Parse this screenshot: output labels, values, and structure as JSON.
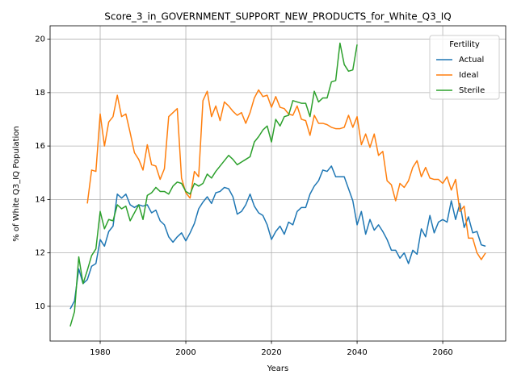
{
  "chart_data": {
    "type": "line",
    "title": "Score_3_in_GOVERNMENT_SUPPORT_NEW_PRODUCTS_for_White_Q3_IQ",
    "xlabel": "Years",
    "ylabel": "% of White Q3_IQ Population",
    "legend_title": "Fertility",
    "legend": "upper right",
    "grid": true,
    "xlim": [
      1968.3,
      2074.7
    ],
    "ylim": [
      8.7,
      20.5
    ],
    "xticks": [
      1980,
      2000,
      2020,
      2040,
      2060
    ],
    "yticks": [
      10,
      12,
      14,
      16,
      18,
      20
    ],
    "x": [
      1973,
      1974,
      1975,
      1976,
      1977,
      1978,
      1979,
      1980,
      1981,
      1982,
      1983,
      1984,
      1985,
      1986,
      1987,
      1988,
      1989,
      1990,
      1991,
      1992,
      1993,
      1994,
      1995,
      1996,
      1997,
      1998,
      1999,
      2000,
      2001,
      2002,
      2003,
      2004,
      2005,
      2006,
      2007,
      2008,
      2009,
      2010,
      2011,
      2012,
      2013,
      2014,
      2015,
      2016,
      2017,
      2018,
      2019,
      2020,
      2021,
      2022,
      2023,
      2024,
      2025,
      2026,
      2027,
      2028,
      2029,
      2030,
      2031,
      2032,
      2033,
      2034,
      2035,
      2036,
      2037,
      2038,
      2039,
      2040,
      2041,
      2042,
      2043,
      2044,
      2045,
      2046,
      2047,
      2048,
      2049,
      2050,
      2051,
      2052,
      2053,
      2054,
      2055,
      2056,
      2057,
      2058,
      2059,
      2060,
      2061,
      2062,
      2063,
      2064,
      2065,
      2066,
      2067,
      2068,
      2069,
      2070
    ],
    "series": [
      {
        "name": "Actual",
        "color": "#1f77b4",
        "values": [
          9.9,
          10.2,
          11.4,
          10.85,
          11.0,
          11.5,
          11.6,
          12.5,
          12.25,
          12.8,
          13.0,
          14.2,
          14.05,
          14.2,
          13.8,
          13.7,
          13.8,
          13.75,
          13.8,
          13.5,
          13.6,
          13.2,
          13.05,
          12.6,
          12.4,
          12.6,
          12.75,
          12.45,
          12.75,
          13.1,
          13.65,
          13.9,
          14.1,
          13.85,
          14.25,
          14.3,
          14.45,
          14.4,
          14.1,
          13.45,
          13.55,
          13.8,
          14.2,
          13.75,
          13.5,
          13.4,
          13.05,
          12.5,
          12.8,
          13.0,
          12.7,
          13.15,
          13.05,
          13.55,
          13.7,
          13.7,
          14.2,
          14.5,
          14.7,
          15.1,
          15.05,
          15.25,
          14.85,
          14.85,
          14.85,
          14.4,
          13.95,
          13.05,
          13.55,
          12.7,
          13.25,
          12.85,
          13.05,
          12.8,
          12.5,
          12.1,
          12.1,
          11.8,
          12.0,
          11.6,
          12.1,
          11.95,
          12.9,
          12.6,
          13.4,
          12.75,
          13.15,
          13.25,
          13.15,
          13.95,
          13.25,
          13.85,
          12.95,
          13.35,
          12.75,
          12.8,
          12.3,
          12.25
        ]
      },
      {
        "name": "Ideal",
        "color": "#ff7f0e",
        "values": [
          null,
          null,
          null,
          null,
          13.85,
          15.1,
          15.05,
          17.2,
          16.0,
          16.9,
          17.1,
          17.9,
          17.1,
          17.2,
          16.5,
          15.75,
          15.5,
          15.1,
          16.05,
          15.3,
          15.25,
          14.75,
          15.15,
          17.1,
          17.25,
          17.4,
          14.8,
          14.25,
          14.05,
          15.05,
          14.85,
          17.7,
          18.05,
          17.1,
          17.5,
          16.95,
          17.65,
          17.5,
          17.3,
          17.15,
          17.25,
          16.85,
          17.25,
          17.8,
          18.1,
          17.85,
          17.9,
          17.45,
          17.85,
          17.45,
          17.4,
          17.2,
          17.15,
          17.5,
          17.0,
          16.95,
          16.4,
          17.15,
          16.85,
          16.85,
          16.8,
          16.7,
          16.65,
          16.65,
          16.7,
          17.15,
          16.7,
          17.1,
          16.05,
          16.45,
          15.95,
          16.45,
          15.65,
          15.8,
          14.7,
          14.55,
          13.95,
          14.6,
          14.45,
          14.7,
          15.2,
          15.45,
          14.85,
          15.2,
          14.8,
          14.75,
          14.75,
          14.6,
          14.85,
          14.35,
          14.75,
          13.55,
          13.75,
          12.55,
          12.55,
          12.0,
          11.75,
          12.0
        ]
      },
      {
        "name": "Sterile",
        "color": "#2ca02c",
        "values": [
          9.25,
          9.8,
          11.85,
          10.85,
          11.35,
          11.9,
          12.15,
          13.55,
          12.9,
          13.25,
          13.2,
          13.8,
          13.65,
          13.75,
          13.2,
          13.5,
          13.8,
          13.25,
          14.15,
          14.25,
          14.45,
          14.3,
          14.3,
          14.2,
          14.5,
          14.65,
          14.6,
          14.3,
          14.2,
          14.6,
          14.5,
          14.6,
          14.95,
          14.8,
          15.05,
          15.25,
          15.45,
          15.65,
          15.5,
          15.3,
          15.4,
          15.5,
          15.6,
          16.15,
          16.35,
          16.6,
          16.75,
          16.15,
          17.0,
          16.75,
          17.1,
          17.15,
          17.7,
          17.65,
          17.6,
          17.6,
          17.1,
          18.05,
          17.65,
          17.8,
          17.8,
          18.4,
          18.45,
          19.85,
          19.05,
          18.8,
          18.85,
          19.8,
          null,
          null,
          null,
          null,
          null,
          null,
          null,
          null,
          null,
          null,
          null,
          null,
          null,
          null,
          null,
          null,
          null,
          null,
          null,
          null,
          null,
          null,
          null,
          null,
          null,
          null,
          null,
          null,
          null,
          null
        ]
      }
    ]
  }
}
